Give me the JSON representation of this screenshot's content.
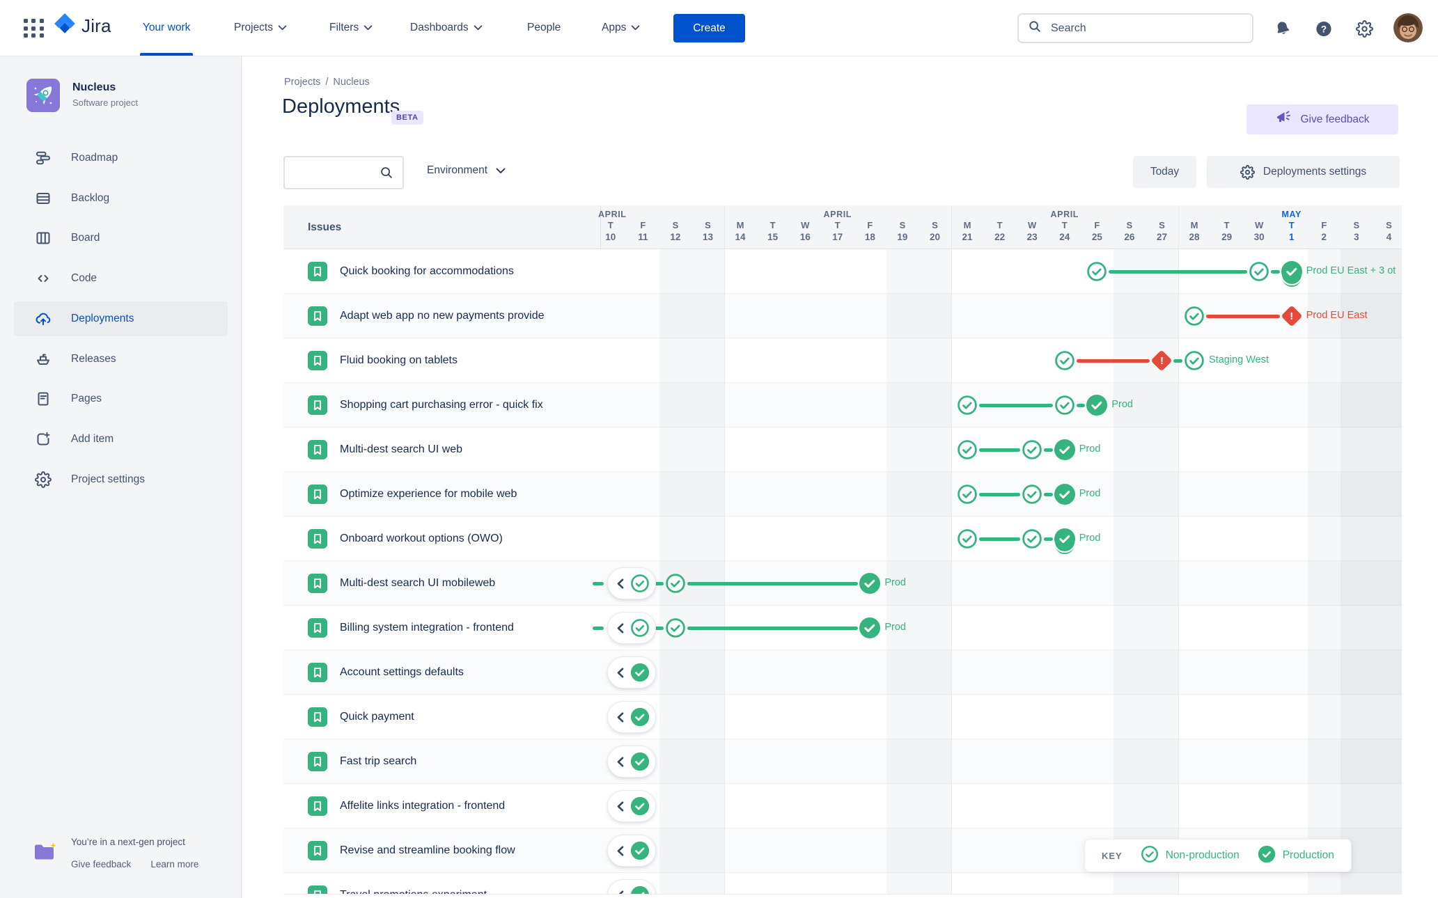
{
  "colors": {
    "green": "#36B37E",
    "red": "#E5493A",
    "brand_blue": "#0052CC",
    "today_blue": "#0C66E4",
    "purple": "#8777D9"
  },
  "topbar": {
    "logo_text": "Jira",
    "nav": [
      {
        "label": "Your work",
        "chevron": false,
        "active": true
      },
      {
        "label": "Projects",
        "chevron": true,
        "active": false
      },
      {
        "label": "Filters",
        "chevron": true,
        "active": false
      },
      {
        "label": "Dashboards",
        "chevron": true,
        "active": false
      },
      {
        "label": "People",
        "chevron": false,
        "active": false
      },
      {
        "label": "Apps",
        "chevron": true,
        "active": false
      }
    ],
    "create_label": "Create",
    "search_placeholder": "Search",
    "icons": [
      "app-switcher-icon",
      "jira-logo-icon",
      "bell-icon",
      "help-icon",
      "gear-icon",
      "avatar"
    ]
  },
  "sidebar": {
    "project": {
      "name": "Nucleus",
      "type": "Software project",
      "icon": "rocket-icon"
    },
    "items": [
      {
        "label": "Roadmap",
        "icon": "roadmap-icon",
        "active": false
      },
      {
        "label": "Backlog",
        "icon": "backlog-icon",
        "active": false
      },
      {
        "label": "Board",
        "icon": "board-icon",
        "active": false
      },
      {
        "label": "Code",
        "icon": "code-icon",
        "active": false
      },
      {
        "label": "Deployments",
        "icon": "deployments-icon",
        "active": true
      },
      {
        "label": "Releases",
        "icon": "releases-icon",
        "active": false
      },
      {
        "label": "Pages",
        "icon": "pages-icon",
        "active": false
      },
      {
        "label": "Add item",
        "icon": "add-item-icon",
        "active": false
      },
      {
        "label": "Project settings",
        "icon": "settings-icon",
        "active": false
      }
    ],
    "footer": {
      "message": "You’re in a next-gen project",
      "feedback_link": "Give feedback",
      "learn_link": "Learn more",
      "icon": "folder-sparkle-icon"
    }
  },
  "page": {
    "breadcrumb": {
      "items": [
        "Projects",
        "Nucleus"
      ],
      "separator": "/"
    },
    "title": "Deployments",
    "badge": "BETA",
    "feedback_button": "Give feedback",
    "controls": {
      "filter_search_value": "",
      "environment": "Environment",
      "today": "Today",
      "settings": "Deployments settings"
    }
  },
  "timeline": {
    "issues_header": "Issues",
    "months": [
      "APRIL",
      "APRIL",
      "APRIL",
      "MAY"
    ],
    "days": [
      {
        "d": "T",
        "n": "10"
      },
      {
        "d": "F",
        "n": "11"
      },
      {
        "d": "S",
        "n": "12"
      },
      {
        "d": "S",
        "n": "13"
      },
      {
        "d": "M",
        "n": "14"
      },
      {
        "d": "T",
        "n": "15"
      },
      {
        "d": "W",
        "n": "16"
      },
      {
        "d": "T",
        "n": "17"
      },
      {
        "d": "F",
        "n": "18"
      },
      {
        "d": "S",
        "n": "19"
      },
      {
        "d": "S",
        "n": "20"
      },
      {
        "d": "M",
        "n": "21"
      },
      {
        "d": "T",
        "n": "22"
      },
      {
        "d": "W",
        "n": "23"
      },
      {
        "d": "T",
        "n": "24"
      },
      {
        "d": "F",
        "n": "25"
      },
      {
        "d": "S",
        "n": "26"
      },
      {
        "d": "S",
        "n": "27"
      },
      {
        "d": "M",
        "n": "28"
      },
      {
        "d": "T",
        "n": "29"
      },
      {
        "d": "W",
        "n": "30"
      },
      {
        "d": "T",
        "n": "1",
        "today": true
      },
      {
        "d": "F",
        "n": "2"
      },
      {
        "d": "S",
        "n": "3"
      },
      {
        "d": "S",
        "n": "4"
      }
    ],
    "key": {
      "label": "KEY",
      "items": [
        {
          "icon": "check-outline-icon",
          "label": "Non-production"
        },
        {
          "icon": "check-filled-icon",
          "label": "Production"
        }
      ]
    }
  },
  "issues": [
    {
      "name": "Quick booking for accommodations",
      "pipeline": [
        {
          "t": "node",
          "style": "outline",
          "day": "F25"
        },
        {
          "t": "line",
          "from": "F25",
          "to": "W30"
        },
        {
          "t": "node",
          "style": "outline",
          "day": "W30"
        },
        {
          "t": "line",
          "from": "W30",
          "to": "T1"
        },
        {
          "t": "node",
          "style": "prod-multi",
          "day": "T1"
        },
        {
          "t": "label",
          "text": "Prod EU East + 3 ot",
          "color": "green",
          "day": "T1"
        }
      ]
    },
    {
      "name": "Adapt web app no new payments provide",
      "pipeline": [
        {
          "t": "node",
          "style": "outline",
          "day": "M28"
        },
        {
          "t": "line",
          "from": "M28",
          "to": "T1",
          "color": "red"
        },
        {
          "t": "node",
          "style": "warn",
          "day": "T1"
        },
        {
          "t": "label",
          "text": "Prod EU East",
          "color": "red",
          "day": "T1"
        }
      ]
    },
    {
      "name": "Fluid booking on tablets",
      "pipeline": [
        {
          "t": "node",
          "style": "outline",
          "day": "T24"
        },
        {
          "t": "line",
          "from": "T24",
          "to": "S27",
          "color": "red"
        },
        {
          "t": "node",
          "style": "warn",
          "day": "S27"
        },
        {
          "t": "line",
          "from": "S27",
          "to": "M28"
        },
        {
          "t": "node",
          "style": "outline",
          "day": "M28"
        },
        {
          "t": "label",
          "text": "Staging West",
          "color": "green",
          "day": "M28"
        }
      ]
    },
    {
      "name": "Shopping cart purchasing error - quick fix",
      "pipeline": [
        {
          "t": "node",
          "style": "outline",
          "day": "M21"
        },
        {
          "t": "line",
          "from": "M21",
          "to": "T24"
        },
        {
          "t": "node",
          "style": "outline",
          "day": "T24"
        },
        {
          "t": "line",
          "from": "T24",
          "to": "F25"
        },
        {
          "t": "node",
          "style": "prod",
          "day": "F25"
        },
        {
          "t": "label",
          "text": "Prod",
          "color": "green",
          "day": "F25"
        }
      ]
    },
    {
      "name": "Multi-dest search UI web",
      "pipeline": [
        {
          "t": "node",
          "style": "outline",
          "day": "M21"
        },
        {
          "t": "line",
          "from": "M21",
          "to": "W23"
        },
        {
          "t": "node",
          "style": "outline",
          "day": "W23"
        },
        {
          "t": "line",
          "from": "W23",
          "to": "T24"
        },
        {
          "t": "node",
          "style": "prod",
          "day": "T24"
        },
        {
          "t": "label",
          "text": "Prod",
          "color": "green",
          "day": "T24"
        }
      ]
    },
    {
      "name": "Optimize experience for mobile web",
      "pipeline": [
        {
          "t": "node",
          "style": "outline",
          "day": "M21"
        },
        {
          "t": "line",
          "from": "M21",
          "to": "W23"
        },
        {
          "t": "node",
          "style": "outline",
          "day": "W23"
        },
        {
          "t": "line",
          "from": "W23",
          "to": "T24"
        },
        {
          "t": "node",
          "style": "prod",
          "day": "T24"
        },
        {
          "t": "label",
          "text": "Prod",
          "color": "green",
          "day": "T24"
        }
      ]
    },
    {
      "name": "Onboard workout options (OWO)",
      "pipeline": [
        {
          "t": "node",
          "style": "outline",
          "day": "M21"
        },
        {
          "t": "line",
          "from": "M21",
          "to": "W23"
        },
        {
          "t": "node",
          "style": "outline",
          "day": "W23"
        },
        {
          "t": "line",
          "from": "W23",
          "to": "T24"
        },
        {
          "t": "node",
          "style": "prod-multi",
          "day": "T24"
        },
        {
          "t": "label",
          "text": "Prod",
          "color": "green",
          "day": "T24"
        }
      ]
    },
    {
      "name": "Multi-dest search UI mobileweb",
      "pipeline": [
        {
          "t": "edge"
        },
        {
          "t": "pill",
          "style": "outline"
        },
        {
          "t": "line",
          "from": "pill",
          "to": "S12"
        },
        {
          "t": "node",
          "style": "outline",
          "day": "S12"
        },
        {
          "t": "line",
          "from": "S12",
          "to": "F18"
        },
        {
          "t": "node",
          "style": "prod",
          "day": "F18"
        },
        {
          "t": "label",
          "text": "Prod",
          "color": "green",
          "day": "F18"
        }
      ]
    },
    {
      "name": "Billing system integration - frontend",
      "pipeline": [
        {
          "t": "edge"
        },
        {
          "t": "pill",
          "style": "outline"
        },
        {
          "t": "line",
          "from": "pill",
          "to": "S12"
        },
        {
          "t": "node",
          "style": "outline",
          "day": "S12"
        },
        {
          "t": "line",
          "from": "S12",
          "to": "F18"
        },
        {
          "t": "node",
          "style": "prod",
          "day": "F18"
        },
        {
          "t": "label",
          "text": "Prod",
          "color": "green",
          "day": "F18"
        }
      ]
    },
    {
      "name": "Account settings defaults",
      "pipeline": [
        {
          "t": "pill",
          "style": "prod"
        }
      ]
    },
    {
      "name": "Quick payment",
      "pipeline": [
        {
          "t": "pill",
          "style": "prod"
        }
      ]
    },
    {
      "name": "Fast trip search",
      "pipeline": [
        {
          "t": "pill",
          "style": "prod"
        }
      ]
    },
    {
      "name": "Affelite links integration - frontend",
      "pipeline": [
        {
          "t": "pill",
          "style": "prod"
        }
      ]
    },
    {
      "name": "Revise and streamline booking flow",
      "pipeline": [
        {
          "t": "pill",
          "style": "prod"
        }
      ]
    },
    {
      "name": "Travel promotions experiment",
      "partial": true,
      "pipeline": [
        {
          "t": "pill",
          "style": "prod"
        }
      ]
    }
  ]
}
